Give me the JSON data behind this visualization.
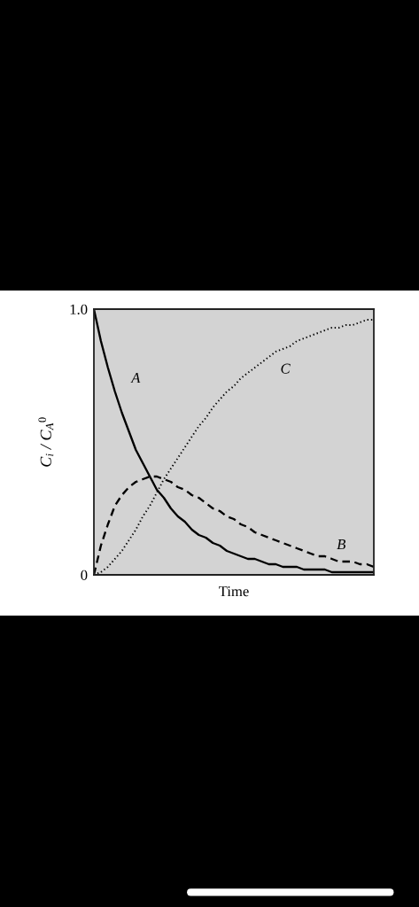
{
  "chart_data": {
    "type": "line",
    "xlabel": "Time",
    "ylabel": "C$_{i}$ / C$_{A}$$^{0}$",
    "categories": [
      null,
      null,
      null,
      null,
      null,
      null,
      null,
      null,
      null,
      null,
      null,
      null,
      null,
      null,
      null,
      null,
      null,
      null,
      null,
      null,
      null,
      null,
      null,
      null,
      null,
      null,
      null,
      null,
      null,
      null,
      null,
      null,
      null,
      null,
      null,
      null,
      null,
      null,
      null,
      null,
      null
    ],
    "series": [
      {
        "name": "A",
        "color": "#000000",
        "line_style": "solid",
        "values": [
          1.0,
          0.88,
          0.78,
          0.69,
          0.61,
          0.54,
          0.47,
          0.42,
          0.37,
          0.32,
          0.29,
          0.25,
          0.22,
          0.2,
          0.17,
          0.15,
          0.14,
          0.12,
          0.11,
          0.09,
          0.08,
          0.07,
          0.06,
          0.06,
          0.05,
          0.04,
          0.04,
          0.03,
          0.03,
          0.03,
          0.02,
          0.02,
          0.02,
          0.02,
          0.01,
          0.01,
          0.01,
          0.01,
          0.01,
          0.01,
          0.01
        ]
      },
      {
        "name": "B",
        "color": "#000000",
        "line_style": "dashed",
        "values": [
          0,
          0.11,
          0.19,
          0.26,
          0.3,
          0.33,
          0.35,
          0.36,
          0.37,
          0.37,
          0.36,
          0.35,
          0.33,
          0.32,
          0.3,
          0.29,
          0.27,
          0.25,
          0.24,
          0.22,
          0.21,
          0.19,
          0.18,
          0.16,
          0.15,
          0.14,
          0.13,
          0.12,
          0.11,
          0.1,
          0.09,
          0.08,
          0.07,
          0.07,
          0.06,
          0.05,
          0.05,
          0.05,
          0.04,
          0.04,
          0.03
        ]
      },
      {
        "name": "C",
        "color": "#000000",
        "line_style": "dotted",
        "values": [
          0,
          0.01,
          0.03,
          0.06,
          0.09,
          0.13,
          0.17,
          0.22,
          0.26,
          0.31,
          0.36,
          0.4,
          0.44,
          0.48,
          0.52,
          0.56,
          0.59,
          0.63,
          0.66,
          0.69,
          0.71,
          0.74,
          0.76,
          0.78,
          0.8,
          0.82,
          0.84,
          0.85,
          0.86,
          0.88,
          0.89,
          0.9,
          0.91,
          0.92,
          0.93,
          0.93,
          0.94,
          0.94,
          0.95,
          0.96,
          0.96
        ]
      }
    ],
    "ylim": [
      0,
      1
    ],
    "yticks": [
      0,
      {
        "value": 1,
        "label": "1.0"
      }
    ]
  }
}
